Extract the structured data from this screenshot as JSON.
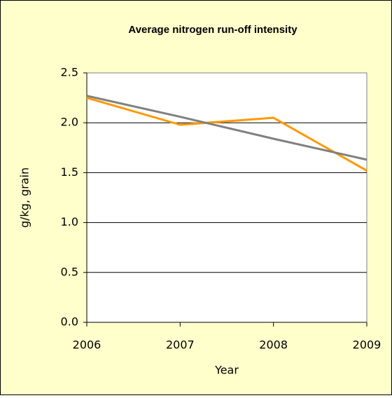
{
  "chart_data": {
    "type": "line",
    "title": "Average nitrogen run-off intensity",
    "x_label": "Year",
    "y_label": "g/kg, grain",
    "x": [
      2006,
      2007,
      2008,
      2009
    ],
    "series": [
      {
        "color": "#ff9900",
        "values": [
          2.25,
          1.98,
          2.05,
          1.52
        ]
      },
      {
        "color": "#808080",
        "values": [
          2.27,
          2.06,
          1.84,
          1.63
        ]
      }
    ],
    "xlim": [
      2006,
      2009
    ],
    "xticks": [
      2006,
      2007,
      2008,
      2009
    ],
    "ylim": [
      0,
      2.5
    ],
    "yticks": [
      {
        "value": 0,
        "label": "0.0"
      },
      0.5,
      {
        "value": 1,
        "label": "1.0"
      },
      1.5,
      {
        "value": 2,
        "label": "2.0"
      },
      2.5
    ],
    "grid": true
  }
}
